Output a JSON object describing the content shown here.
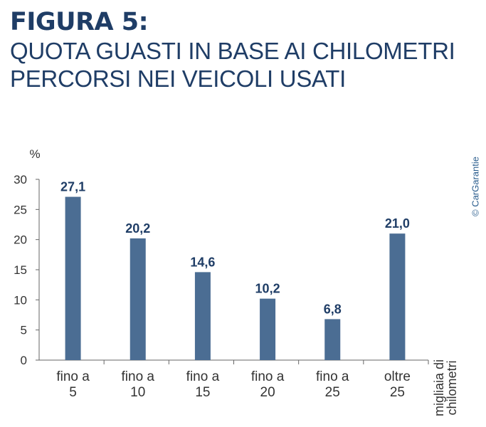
{
  "header": {
    "figure_label": "FIGURA 5:",
    "title_line1": "QUOTA GUASTI IN BASE AI CHILOMETRI",
    "title_line2": "PERCORSI NEI VEICOLI USATI"
  },
  "credit": "© CarGarantie",
  "colors": {
    "bar": "#4b6d93",
    "title": "#1f3d66",
    "value_label": "#1f3d66",
    "axis": "#666666"
  },
  "chart_data": {
    "type": "bar",
    "title": "QUOTA GUASTI IN BASE AI CHILOMETRI PERCORSI NEI VEICOLI USATI",
    "ylabel": "%",
    "xlabel_lines": [
      "migliaia di",
      "chilometri"
    ],
    "ylim": [
      0,
      30
    ],
    "yticks": [
      0,
      5,
      10,
      15,
      20,
      25,
      30
    ],
    "grid": false,
    "categories": [
      [
        "fino a",
        "5"
      ],
      [
        "fino a",
        "10"
      ],
      [
        "fino a",
        "15"
      ],
      [
        "fino a",
        "20"
      ],
      [
        "fino a",
        "25"
      ],
      [
        "oltre",
        "25"
      ]
    ],
    "values": [
      27.1,
      20.2,
      14.6,
      10.2,
      6.8,
      21.0
    ],
    "value_labels": [
      "27,1",
      "20,2",
      "14,6",
      "10,2",
      "6,8",
      "21,0"
    ]
  }
}
